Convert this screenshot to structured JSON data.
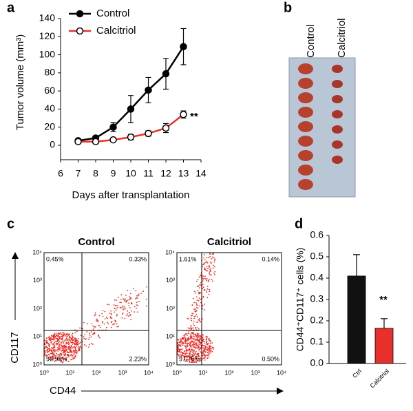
{
  "panel_labels": [
    "a",
    "b",
    "c",
    "d"
  ],
  "chart_data": [
    {
      "type": "line",
      "xlabel": "Days after transplantation",
      "ylabel": "Tumor volume (mm³)",
      "x": [
        7,
        8,
        9,
        10,
        11,
        12,
        13
      ],
      "xlim": [
        6,
        14
      ],
      "xticks": [
        6,
        7,
        8,
        9,
        10,
        11,
        12,
        13,
        14
      ],
      "ylim": [
        -16,
        140
      ],
      "yticks": [
        0,
        20,
        40,
        60,
        80,
        100,
        120,
        140
      ],
      "series": [
        {
          "name": "Control",
          "color": "#000000",
          "values": [
            5,
            8,
            20,
            40,
            61,
            79,
            109
          ],
          "errors": [
            1,
            2,
            5,
            15,
            14,
            17,
            20
          ]
        },
        {
          "name": "Calcitriol",
          "color": "#e8302a",
          "values": [
            4,
            4,
            6,
            9,
            13,
            19,
            34
          ],
          "errors": [
            1,
            1,
            2,
            3,
            3,
            5,
            4
          ]
        }
      ],
      "annotation": "**"
    },
    {
      "type": "bar",
      "ylabel": "CD44⁺CD117⁺ cells (%)",
      "categories": [
        "Ctrl",
        "Calcitriol"
      ],
      "values": [
        0.41,
        0.165
      ],
      "errors": [
        0.1,
        0.045
      ],
      "colors": [
        "#111111",
        "#e8302a"
      ],
      "ylim": [
        0,
        0.6
      ],
      "yticks": [
        {
          "value": 0,
          "label": "0.0"
        },
        0.1,
        0.2,
        0.3,
        0.4,
        0.5,
        0.6
      ],
      "annotation": "**"
    }
  ],
  "photo": {
    "labels": [
      "Control",
      "Calcitriol"
    ]
  },
  "flow": {
    "ylabel": "CD117",
    "xlabel": "CD44",
    "ticks": [
      "10⁰",
      "10¹",
      "10²",
      "10³",
      "10⁴"
    ],
    "plots": [
      {
        "title": "Control",
        "quadrants": [
          "0.45%",
          "0.33%",
          "96.99%",
          "2.23%"
        ]
      },
      {
        "title": "Calcitriol",
        "quadrants": [
          "1.61%",
          "0.14%",
          "97.76%",
          "0.50%"
        ]
      }
    ]
  }
}
